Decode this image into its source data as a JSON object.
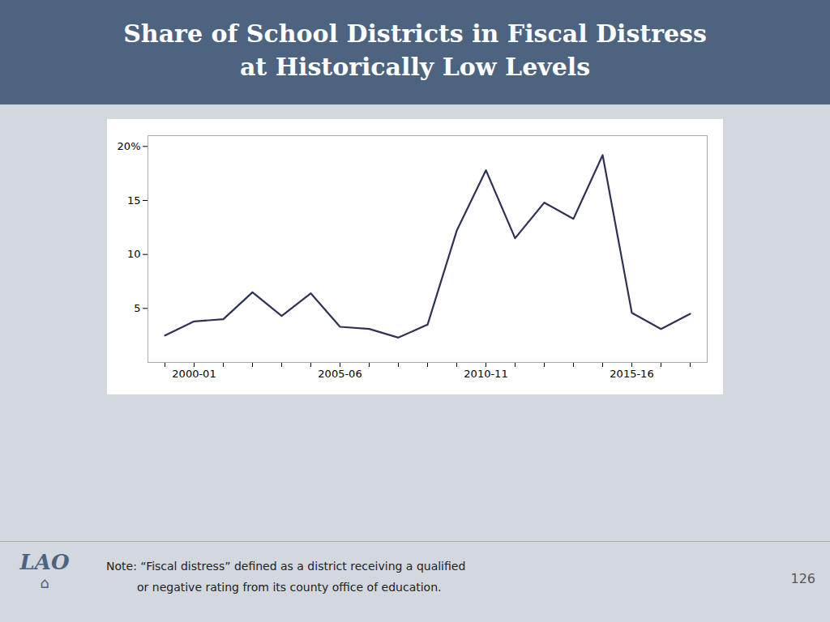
{
  "chart_data": {
    "type": "line",
    "title": [
      "Share of School Districts in Fiscal Distress",
      "at Historically Low Levels"
    ],
    "categories": [
      null,
      "2000-01",
      null,
      null,
      null,
      null,
      "2005-06",
      null,
      null,
      null,
      null,
      "2010-11",
      null,
      null,
      null,
      null,
      "2015-16",
      null,
      null
    ],
    "values": [
      2.5,
      3.8,
      4.0,
      6.5,
      4.3,
      6.4,
      3.3,
      3.1,
      2.3,
      3.5,
      12.2,
      17.8,
      11.5,
      14.8,
      13.3,
      19.2,
      4.6,
      3.1,
      4.5
    ],
    "color": "#2e3255",
    "ylim": [
      0,
      21
    ],
    "yticks": [
      5,
      10,
      15,
      {
        "value": 20,
        "label": "20%"
      }
    ],
    "grid": false,
    "annotations": [
      "LAO",
      "⌂",
      "Note:  “Fiscal distress” defined as a district receiving a qualified",
      "or negative rating from its county office of education.",
      "126"
    ]
  }
}
